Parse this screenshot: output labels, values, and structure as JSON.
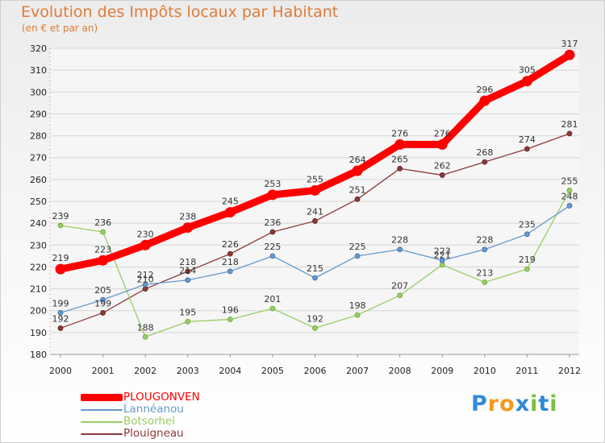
{
  "title": "Evolution des Impôts locaux par Habitant",
  "subtitle": "(en € et par an)",
  "logo": {
    "text": "Proxiti",
    "letters": [
      {
        "ch": "P",
        "color": "#2f8bd6"
      },
      {
        "ch": "r",
        "color": "#f29a1f"
      },
      {
        "ch": "o",
        "color": "#f29a1f"
      },
      {
        "ch": "x",
        "color": "#2f8bd6"
      },
      {
        "ch": "i",
        "color": "#7bc043"
      },
      {
        "ch": "t",
        "color": "#2f8bd6"
      },
      {
        "ch": "i",
        "color": "#7bc043"
      }
    ]
  },
  "chart_data": {
    "type": "line",
    "title": "Evolution des Impôts locaux par Habitant",
    "subtitle": "(en € et par an)",
    "xlabel": "",
    "ylabel": "",
    "ylim": [
      180,
      320
    ],
    "yticks": [
      180,
      190,
      200,
      210,
      220,
      230,
      240,
      250,
      260,
      270,
      280,
      290,
      300,
      310,
      320
    ],
    "grid": "y",
    "legend": "bottom-left",
    "categories": [
      "2000",
      "2001",
      "2002",
      "2003",
      "2004",
      "2005",
      "2006",
      "2007",
      "2008",
      "2009",
      "2010",
      "2011",
      "2012"
    ],
    "series": [
      {
        "name": "PLOUGONVEN",
        "color": "#ff0000",
        "values": [
          219,
          223,
          230,
          238,
          245,
          253,
          255,
          264,
          276,
          276,
          296,
          305,
          317
        ],
        "labels": [
          "219",
          "223",
          "230",
          "238",
          "245",
          "253",
          "255",
          "264",
          "276",
          "276",
          "296",
          "305",
          "317"
        ]
      },
      {
        "name": "Lannéanou",
        "color": "#6699cc",
        "values": [
          199,
          205,
          212,
          214,
          218,
          225,
          215,
          225,
          228,
          223,
          228,
          235,
          248
        ],
        "labels": [
          "199",
          "205",
          "212",
          "214",
          "218",
          "225",
          "215",
          "225",
          "228",
          "223",
          "228",
          "235",
          "248"
        ]
      },
      {
        "name": "Botsorhel",
        "color": "#99cc66",
        "values": [
          239,
          236,
          188,
          195,
          196,
          201,
          192,
          198,
          207,
          221,
          213,
          219,
          255
        ],
        "labels": [
          "239",
          "236",
          "188",
          "195",
          "196",
          "201",
          "192",
          "198",
          "207",
          "221",
          "213",
          "219",
          "255"
        ]
      },
      {
        "name": "Plouigneau",
        "color": "#8b3a3a",
        "values": [
          192,
          199,
          210,
          218,
          226,
          236,
          241,
          251,
          265,
          262,
          268,
          274,
          281
        ],
        "labels": [
          "192",
          "199",
          "210",
          "218",
          "226",
          "236",
          "241",
          "251",
          "265",
          "262",
          "268",
          "274",
          "281"
        ]
      }
    ]
  }
}
